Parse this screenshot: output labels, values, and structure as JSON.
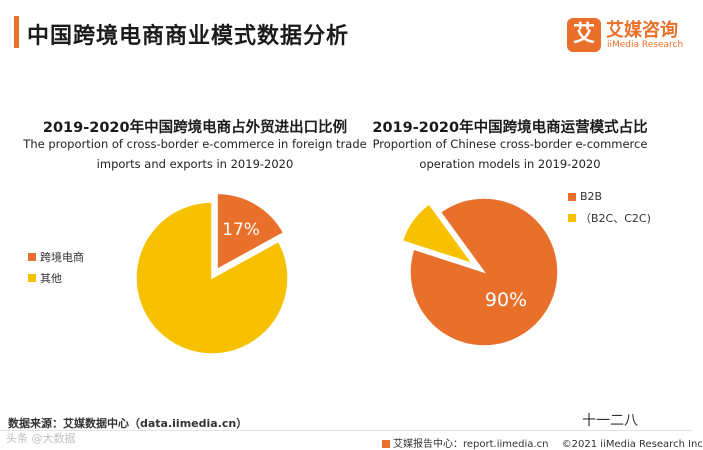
{
  "header": {
    "title": "中国跨境电商商业模式数据分析",
    "brand_mark": "艾",
    "brand_name": "艾媒咨询",
    "brand_en": "iiMedia Research"
  },
  "colors": {
    "orange": "#e8702a",
    "yellow": "#f7c100"
  },
  "chart_data": [
    {
      "type": "pie",
      "title": "2019-2020年中国跨境电商占外贸进出口比例",
      "subtitle_line1": "The proportion of cross-border e-commerce in foreign trade",
      "subtitle_line2": "imports and exports in 2019-2020",
      "slices": [
        {
          "label": "跨境电商",
          "value": 17,
          "display": "17%",
          "exploded": true
        },
        {
          "label": "其他",
          "value": 83,
          "display": "",
          "exploded": false
        }
      ]
    },
    {
      "type": "pie",
      "title": "2019-2020年中国跨境电商运营模式占比",
      "subtitle_line1": "Proportion of Chinese cross-border e-commerce",
      "subtitle_line2": "operation models in 2019-2020",
      "slices": [
        {
          "label": "B2B",
          "value": 90,
          "display": "90%",
          "exploded": false
        },
        {
          "label": "（B2C、C2C)",
          "value": 10,
          "display": "",
          "exploded": true
        }
      ]
    }
  ],
  "footer": {
    "source": "数据来源：艾媒数据中心（data.iimedia.cn）",
    "watermark": "十一二八",
    "report": "艾媒报告中心：report.iimedia.cn",
    "copyright": "©2021  iiMedia Research  Inc",
    "corner": "头条 @大数据"
  }
}
